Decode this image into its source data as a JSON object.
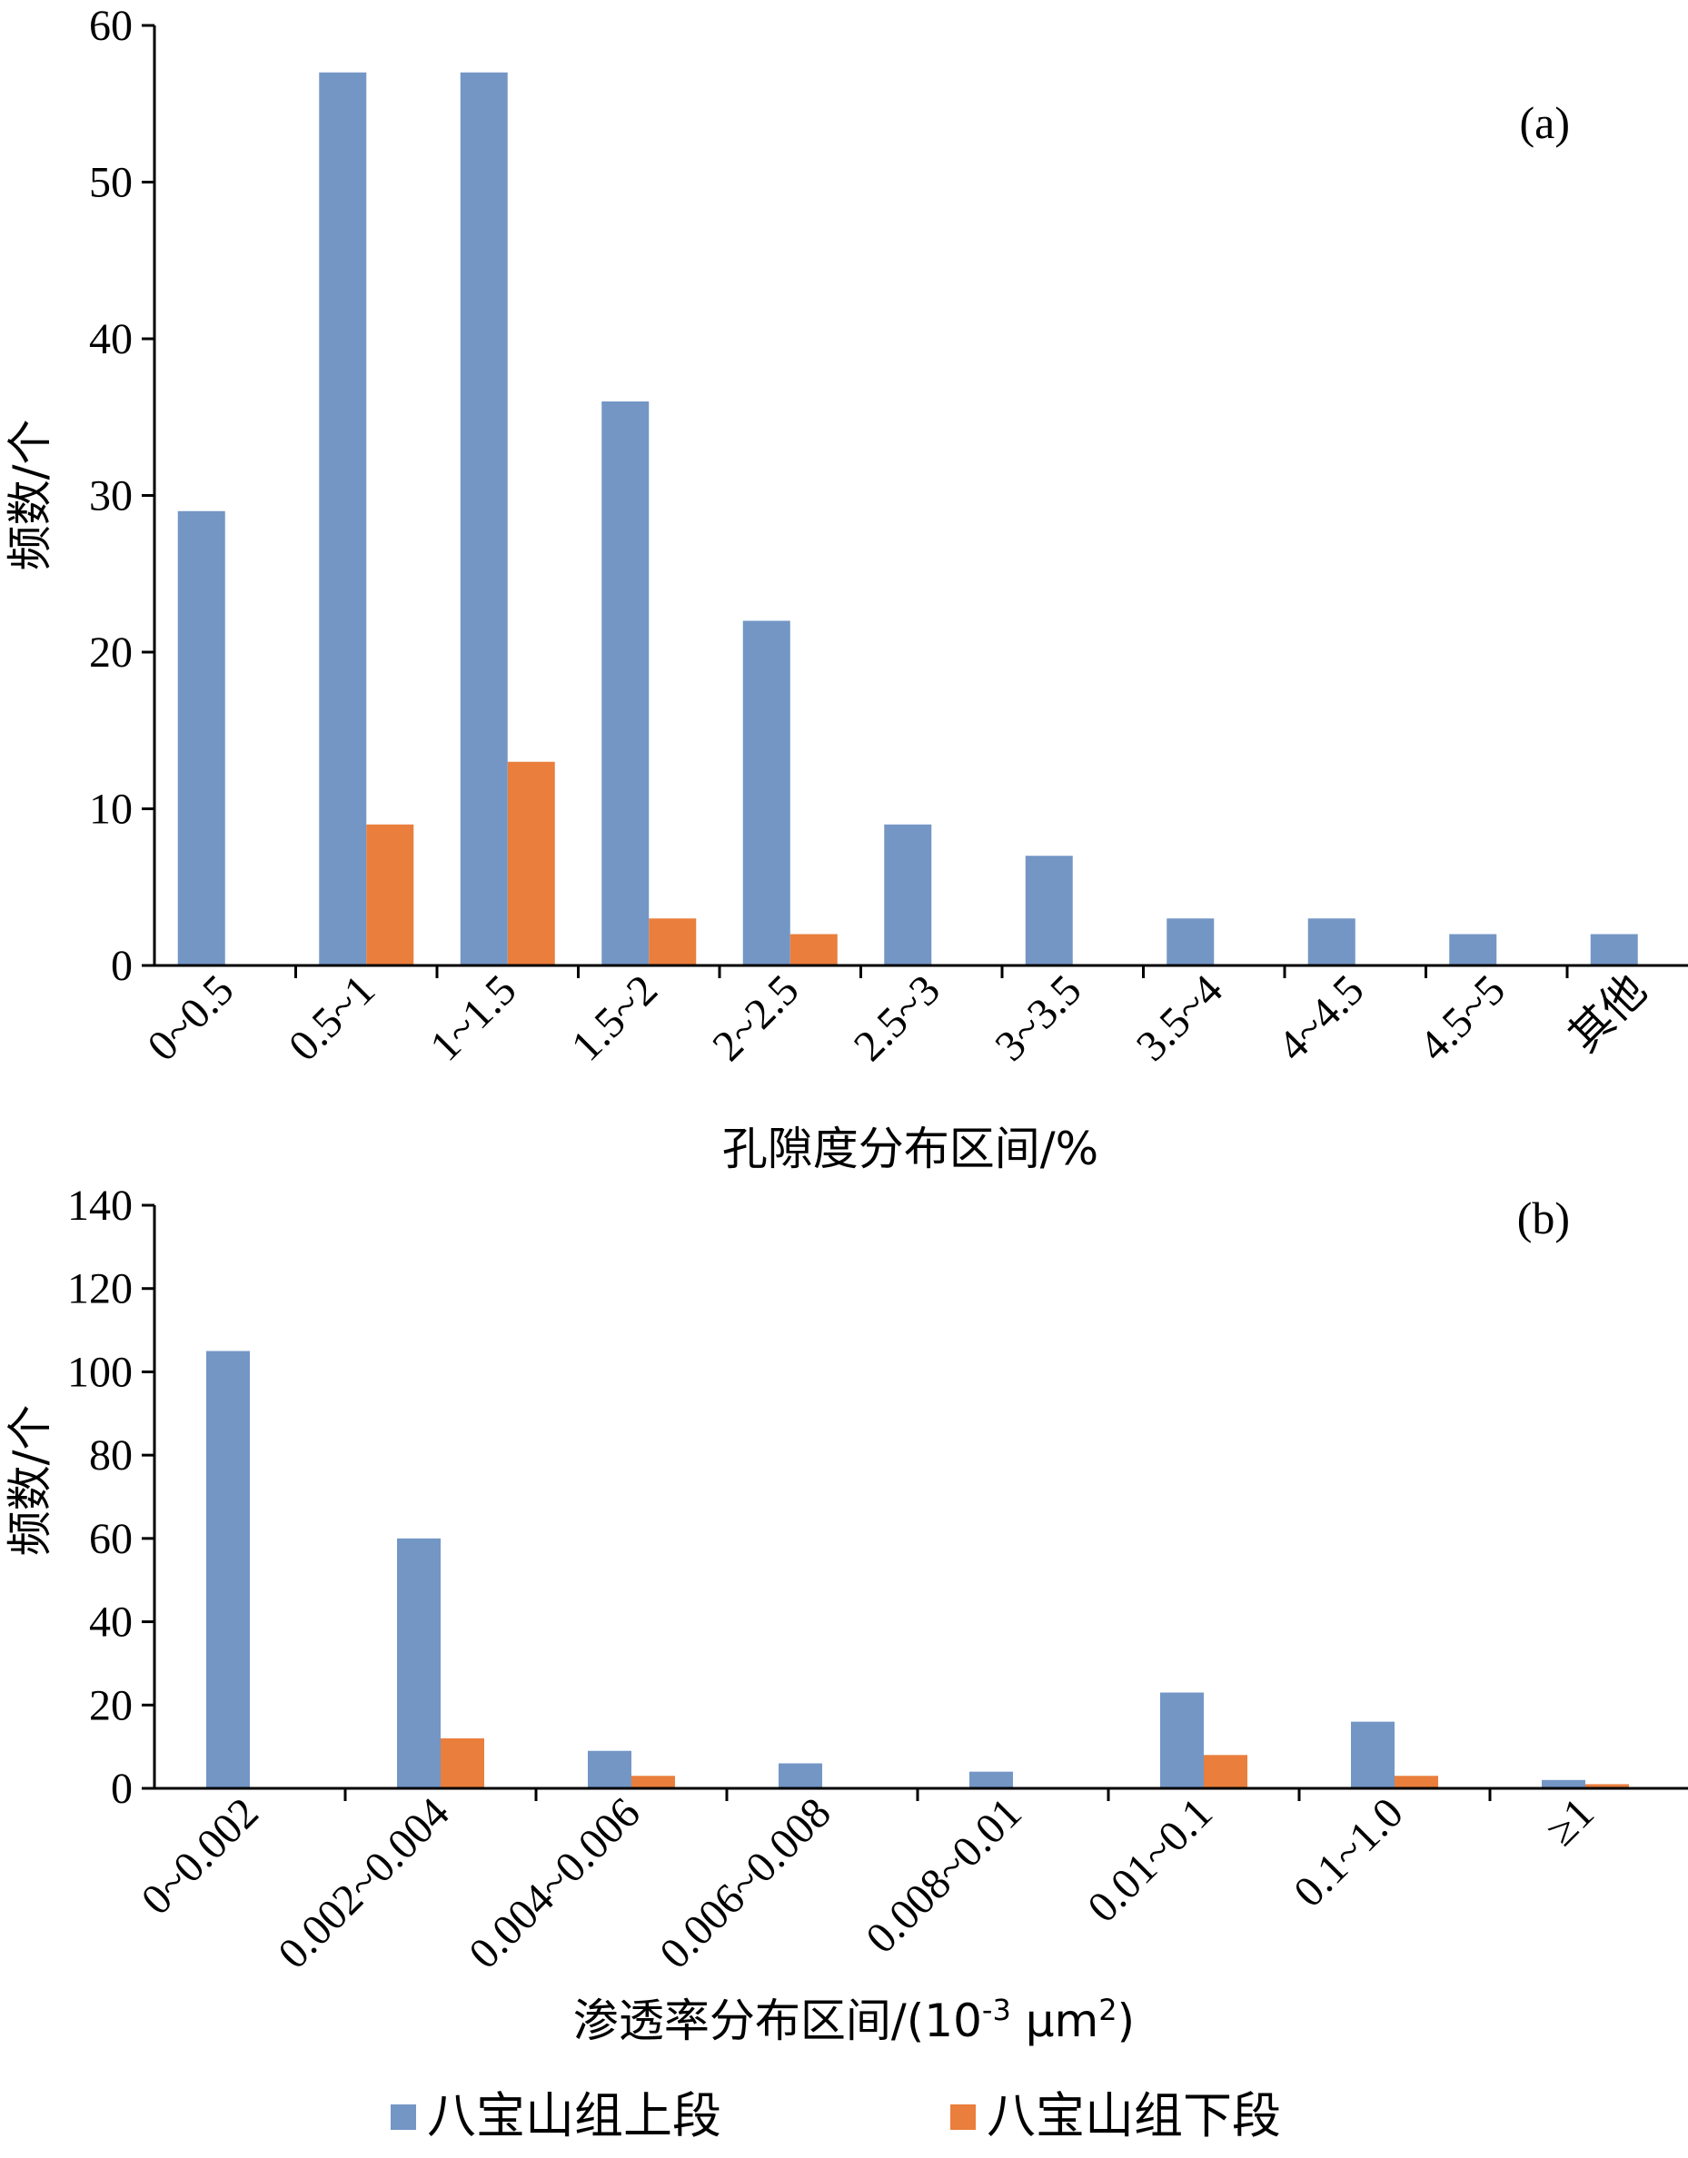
{
  "chart_data": [
    {
      "type": "bar",
      "panel_label": "(a)",
      "categories": [
        "0~0.5",
        "0.5~1",
        "1~1.5",
        "1.5~2",
        "2~2.5",
        "2.5~3",
        "3~3.5",
        "3.5~4",
        "4~4.5",
        "4.5~5",
        "其他"
      ],
      "series": [
        {
          "name": "八宝山组上段",
          "color": "#7396c5",
          "values": [
            29,
            57,
            57,
            36,
            22,
            9,
            7,
            3,
            3,
            2,
            2
          ]
        },
        {
          "name": "八宝山组下段",
          "color": "#ea7e3c",
          "values": [
            0,
            9,
            13,
            3,
            2,
            0,
            0,
            0,
            0,
            0,
            0
          ]
        }
      ],
      "yticks": [
        0,
        10,
        20,
        30,
        40,
        50,
        60
      ],
      "ylim": [
        0,
        60
      ],
      "xlabel": "孔隙度分布区间/%",
      "ylabel": "频数/个",
      "grid": false
    },
    {
      "type": "bar",
      "panel_label": "(b)",
      "categories": [
        "0~0.002",
        "0.002~0.004",
        "0.004~0.006",
        "0.006~0.008",
        "0.008~0.01",
        "0.01~0.1",
        "0.1~1.0",
        "≥1"
      ],
      "series": [
        {
          "name": "八宝山组上段",
          "color": "#7396c5",
          "values": [
            105,
            60,
            9,
            6,
            4,
            23,
            16,
            2
          ]
        },
        {
          "name": "八宝山组下段",
          "color": "#ea7e3c",
          "values": [
            0,
            12,
            3,
            0,
            0,
            8,
            3,
            1
          ]
        }
      ],
      "yticks": [
        0,
        20,
        40,
        60,
        80,
        100,
        120,
        140
      ],
      "ylim": [
        0,
        140
      ],
      "xlabel": "渗透率分布区间/(10-3 μm2)",
      "ylabel": "频数/个",
      "grid": false
    }
  ],
  "xlabel_b_parts": {
    "prefix": "渗透率分布区间/(10",
    "sup1": "-3",
    "middle": " μm",
    "sup2": "2",
    "suffix": ")"
  },
  "legend": {
    "position": "bottom",
    "items": [
      {
        "name": "八宝山组上段",
        "color": "#7396c5"
      },
      {
        "name": "八宝山组下段",
        "color": "#ea7e3c"
      }
    ]
  }
}
